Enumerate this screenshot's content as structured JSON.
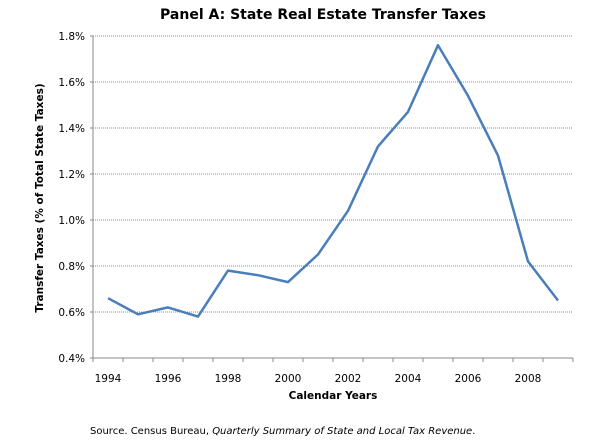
{
  "chart_data": {
    "type": "line",
    "title": "Panel A: State Real Estate Transfer Taxes",
    "xlabel": "Calendar Years",
    "ylabel": "Transfer Taxes  (% of Total State Taxes)",
    "x": [
      1994,
      1995,
      1996,
      1997,
      1998,
      1999,
      2000,
      2001,
      2002,
      2003,
      2004,
      2005,
      2006,
      2007,
      2008,
      2009
    ],
    "series": [
      {
        "values": [
          0.66,
          0.59,
          0.62,
          0.58,
          0.78,
          0.76,
          0.73,
          0.85,
          1.04,
          1.32,
          1.47,
          1.76,
          1.54,
          1.28,
          0.82,
          0.65
        ]
      }
    ],
    "x_tick_labels": [
      "1994",
      "1996",
      "1998",
      "2000",
      "2002",
      "2004",
      "2006",
      "2008"
    ],
    "y_tick_labels": [
      "0.4%",
      "0.6%",
      "0.8%",
      "1.0%",
      "1.2%",
      "1.4%",
      "1.6%",
      "1.8%"
    ],
    "ylim": [
      0.4,
      1.8
    ],
    "y_unit": "%",
    "grid": true,
    "line_color": "#4a7ebb"
  },
  "source": {
    "prefix": "Source.  Census Bureau, ",
    "italic": "Quarterly Summary of State and Local Tax Revenue",
    "suffix": "."
  }
}
